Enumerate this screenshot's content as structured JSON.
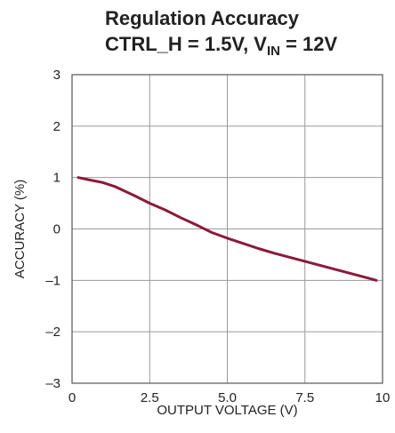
{
  "chart_data": {
    "type": "line",
    "title_line1": "Regulation Accuracy",
    "title_line2": {
      "prefix": "CTRL_H = 1.5V, V",
      "subscript": "IN",
      "suffix": " = 12V"
    },
    "xlabel": "OUTPUT VOLTAGE (V)",
    "ylabel": "ACCURACY (%)",
    "xlim": [
      0,
      10
    ],
    "ylim": [
      -3,
      3
    ],
    "xticks": [
      0,
      2.5,
      5.0,
      7.5,
      10
    ],
    "xtick_labels": [
      "0",
      "2.5",
      "5.0",
      "7.5",
      "10"
    ],
    "yticks": [
      3,
      2,
      1,
      0,
      -1,
      -2,
      -3
    ],
    "ytick_labels": [
      "3",
      "2",
      "1",
      "0",
      "–1",
      "–2",
      "–3"
    ],
    "grid": true,
    "series": [
      {
        "color": "#8b1a3a",
        "x": [
          0.2,
          0.6,
          1.0,
          1.4,
          2.0,
          2.5,
          3.0,
          3.5,
          4.0,
          4.5,
          5.0,
          5.5,
          6.0,
          6.5,
          7.0,
          7.5,
          8.0,
          8.5,
          9.0,
          9.5,
          9.8
        ],
        "y": [
          1.0,
          0.95,
          0.9,
          0.82,
          0.65,
          0.5,
          0.37,
          0.22,
          0.08,
          -0.07,
          -0.18,
          -0.28,
          -0.38,
          -0.47,
          -0.55,
          -0.63,
          -0.71,
          -0.79,
          -0.87,
          -0.95,
          -1.0
        ]
      }
    ]
  }
}
